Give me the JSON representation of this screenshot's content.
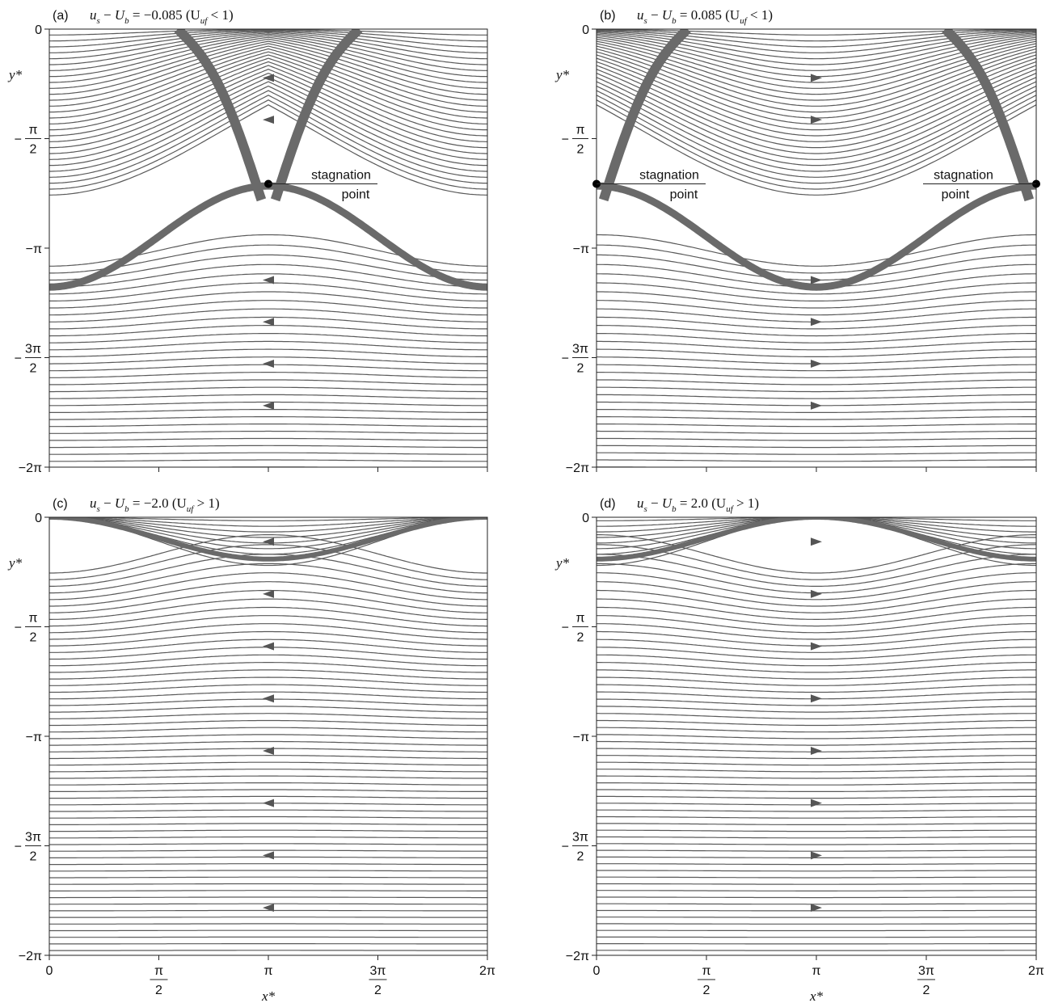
{
  "chart_data": [
    {
      "panel": "(a)",
      "title": "u*s − U*b = −0.085   (U*uf < 1)",
      "title_parts": {
        "tag": "(a)",
        "eq": "u",
        "eq_sub1": "s",
        "minus": "−",
        "eq2": "U",
        "eq_sub2": "b",
        "value": " = −0.085",
        "regime": "(U",
        "regime_sub": "uf",
        "regime_rel": " < 1)"
      },
      "type": "streamline",
      "flow_sign": -1,
      "speed_difference": -0.085,
      "regime": "U*uf < 1",
      "annotations": [
        {
          "text": [
            "stagnation",
            "point"
          ],
          "x": 3.1416,
          "y": -2.22
        }
      ],
      "stagnation_points": [
        {
          "x": 3.1416,
          "y": -2.22
        }
      ],
      "xlim": [
        0,
        6.2832
      ],
      "ylim": [
        -6.2832,
        0
      ],
      "show_x_ticklabels": false,
      "xlabel": "",
      "ylabel": "y*"
    },
    {
      "panel": "(b)",
      "title": "u*s − U*b = 0.085   (U*uf < 1)",
      "title_parts": {
        "tag": "(b)",
        "eq": "u",
        "eq_sub1": "s",
        "minus": "−",
        "eq2": "U",
        "eq_sub2": "b",
        "value": " = 0.085",
        "regime": "(U",
        "regime_sub": "uf",
        "regime_rel": " < 1)"
      },
      "type": "streamline",
      "flow_sign": 1,
      "speed_difference": 0.085,
      "regime": "U*uf < 1",
      "annotations": [
        {
          "text": [
            "stagnation",
            "point"
          ],
          "x": 0.0,
          "y": -2.22
        },
        {
          "text": [
            "stagnation",
            "point"
          ],
          "x": 6.2832,
          "y": -2.22
        }
      ],
      "stagnation_points": [
        {
          "x": 0.0,
          "y": -2.22
        },
        {
          "x": 6.2832,
          "y": -2.22
        }
      ],
      "xlim": [
        0,
        6.2832
      ],
      "ylim": [
        -6.2832,
        0
      ],
      "show_x_ticklabels": false,
      "xlabel": "",
      "ylabel": "y*"
    },
    {
      "panel": "(c)",
      "title": "u*s − U*b = −2.0   (U*uf > 1)",
      "title_parts": {
        "tag": "(c)",
        "eq": "u",
        "eq_sub1": "s",
        "minus": "−",
        "eq2": "U",
        "eq_sub2": "b",
        "value": " = −2.0",
        "regime": "(U",
        "regime_sub": "uf",
        "regime_rel": " > 1)"
      },
      "type": "streamline",
      "flow_sign": -1,
      "speed_difference": -2.0,
      "regime": "U*uf > 1",
      "annotations": [],
      "stagnation_points": [],
      "xlim": [
        0,
        6.2832
      ],
      "ylim": [
        -6.2832,
        0
      ],
      "show_x_ticklabels": true,
      "xlabel": "x*",
      "ylabel": "y*"
    },
    {
      "panel": "(d)",
      "title": "u*s − U*b = 2.0   (U*uf > 1)",
      "title_parts": {
        "tag": "(d)",
        "eq": "u",
        "eq_sub1": "s",
        "minus": "−",
        "eq2": "U",
        "eq_sub2": "b",
        "value": " = 2.0",
        "regime": "(U",
        "regime_sub": "uf",
        "regime_rel": " > 1)"
      },
      "type": "streamline",
      "flow_sign": 1,
      "speed_difference": 2.0,
      "regime": "U*uf > 1",
      "annotations": [],
      "stagnation_points": [],
      "xlim": [
        0,
        6.2832
      ],
      "ylim": [
        -6.2832,
        0
      ],
      "show_x_ticklabels": true,
      "xlabel": "x*",
      "ylabel": "y*"
    }
  ],
  "ticks": {
    "x": [
      {
        "value": 0,
        "num": "0",
        "den": ""
      },
      {
        "value": 1.5708,
        "num": "π",
        "den": "2"
      },
      {
        "value": 3.1416,
        "num": "π",
        "den": ""
      },
      {
        "value": 4.7124,
        "num": "3π",
        "den": "2"
      },
      {
        "value": 6.2832,
        "num": "2π",
        "den": ""
      }
    ],
    "y": [
      {
        "value": 0,
        "num": "0",
        "den": "",
        "neg": false
      },
      {
        "value": -1.5708,
        "num": "π",
        "den": "2",
        "neg": true
      },
      {
        "value": -3.1416,
        "num": "−π",
        "den": "",
        "neg": false
      },
      {
        "value": -4.7124,
        "num": "3π",
        "den": "2",
        "neg": true
      },
      {
        "value": -6.2832,
        "num": "−2π",
        "den": "",
        "neg": false
      }
    ]
  },
  "colors": {
    "streamline": "#5a5a5a",
    "separatrix": "#6a6a6a",
    "axis": "#222222",
    "marker": "#000000",
    "arrow": "#555555"
  }
}
